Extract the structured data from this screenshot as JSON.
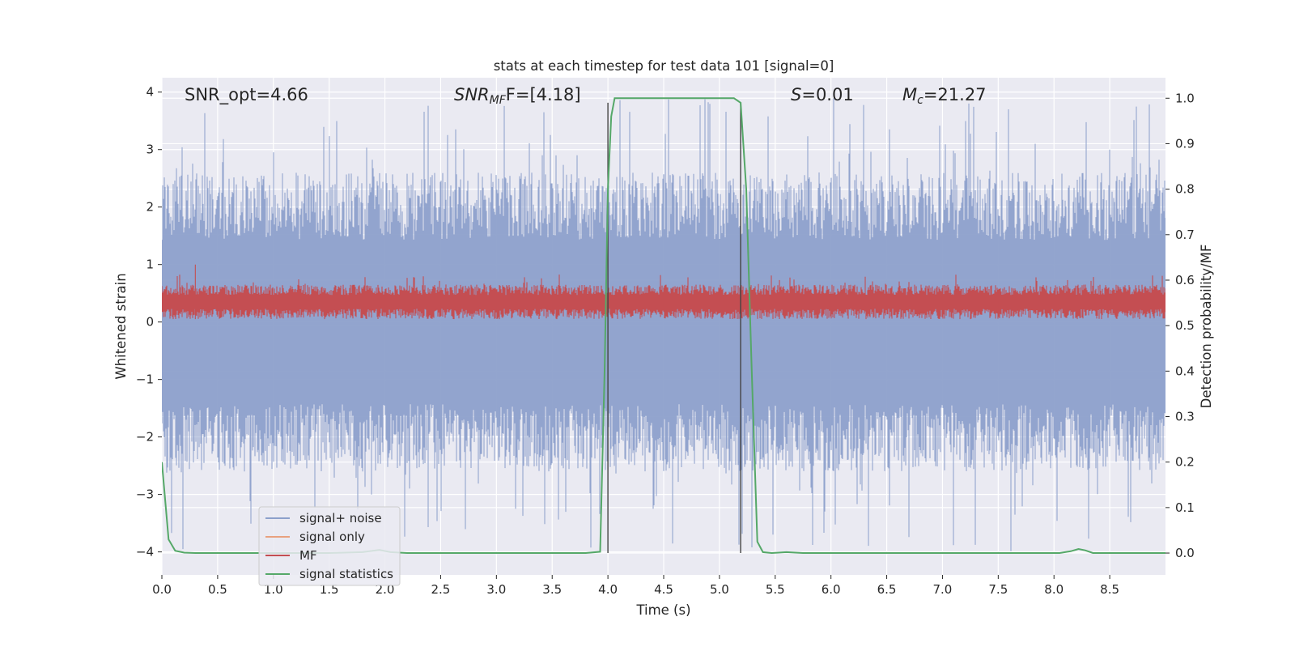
{
  "chart_data": {
    "type": "line",
    "title": "stats at each timestep for test data 101 [signal=0]",
    "xlabel": "Time (s)",
    "ylabel": "Whitened strain",
    "ylabel_right": "Detection probability/MF",
    "xlim": [
      0,
      9.0
    ],
    "ylim": [
      -4.4,
      4.25
    ],
    "ylim_right": [
      -0.048,
      1.045
    ],
    "grid": true,
    "x_ticks": [
      0.0,
      0.5,
      1.0,
      1.5,
      2.0,
      2.5,
      3.0,
      3.5,
      4.0,
      4.5,
      5.0,
      5.5,
      6.0,
      6.5,
      7.0,
      7.5,
      8.0,
      8.5
    ],
    "x_tick_labels": [
      "0.0",
      "0.5",
      "1.0",
      "1.5",
      "2.0",
      "2.5",
      "3.0",
      "3.5",
      "4.0",
      "4.5",
      "5.0",
      "5.5",
      "6.0",
      "6.5",
      "7.0",
      "7.5",
      "8.0",
      "8.5"
    ],
    "y_ticks": [
      -4,
      -3,
      -2,
      -1,
      0,
      1,
      2,
      3,
      4
    ],
    "y_tick_labels": [
      "−4",
      "−3",
      "−2",
      "−1",
      "0",
      "1",
      "2",
      "3",
      "4"
    ],
    "y_right_ticks": [
      0.0,
      0.1,
      0.2,
      0.3,
      0.4,
      0.5,
      0.6,
      0.7,
      0.8,
      0.9,
      1.0
    ],
    "y_right_tick_labels": [
      "0.0",
      "0.1",
      "0.2",
      "0.3",
      "0.4",
      "0.5",
      "0.6",
      "0.7",
      "0.8",
      "0.9",
      "1.0"
    ],
    "annotations": {
      "snr_opt": "SNR_opt=4.66",
      "snr_mf_base": "SNR",
      "snr_mf_sub": "MF",
      "snr_mf_tail": "F=[4.18]",
      "s_stat_italic": "S",
      "s_stat_value": "=0.01",
      "mc_base": "M",
      "mc_sub": "c",
      "mc_value": "=21.27"
    },
    "vertical_markers_x": [
      4.0,
      5.19
    ],
    "legend": {
      "placement": "lower-left",
      "entries": [
        "signal+ noise",
        "signal only",
        "MF",
        "signal statistics"
      ]
    },
    "series": [
      {
        "name": "signal+ noise",
        "color": "#8da0cb",
        "axis": "left",
        "envelope_y": [
          -2.6,
          2.6
        ],
        "peak_range_y": [
          -4.0,
          3.9
        ],
        "description_values_note": "whitened strain noise, approx. amplitude ±2.6 with peaks to ±4"
      },
      {
        "name": "signal only",
        "color": "#e8a17f",
        "axis": "left",
        "values": []
      },
      {
        "name": "MF",
        "color": "#c44e52",
        "axis": "left",
        "band_y": [
          0.05,
          0.65
        ],
        "max_y": 1.0
      },
      {
        "name": "signal statistics",
        "color": "#55a868",
        "axis": "right",
        "x": [
          0.0,
          0.06,
          0.12,
          0.2,
          0.3,
          1.5,
          1.8,
          1.95,
          2.05,
          2.2,
          3.8,
          3.93,
          3.97,
          4.0,
          4.03,
          4.06,
          5.08,
          5.13,
          5.19,
          5.24,
          5.29,
          5.34,
          5.39,
          5.47,
          5.6,
          5.75,
          6.0,
          8.05,
          8.15,
          8.22,
          8.28,
          8.35,
          9.0
        ],
        "values": [
          0.2,
          0.03,
          0.005,
          0.001,
          0.0,
          0.0,
          0.002,
          0.007,
          0.002,
          0.0,
          0.0,
          0.003,
          0.4,
          0.8,
          0.96,
          1.0,
          1.0,
          1.0,
          0.99,
          0.8,
          0.4,
          0.025,
          0.002,
          0.0,
          0.002,
          0.0,
          0.0,
          0.0,
          0.004,
          0.009,
          0.006,
          0.0,
          0.0
        ]
      }
    ]
  }
}
